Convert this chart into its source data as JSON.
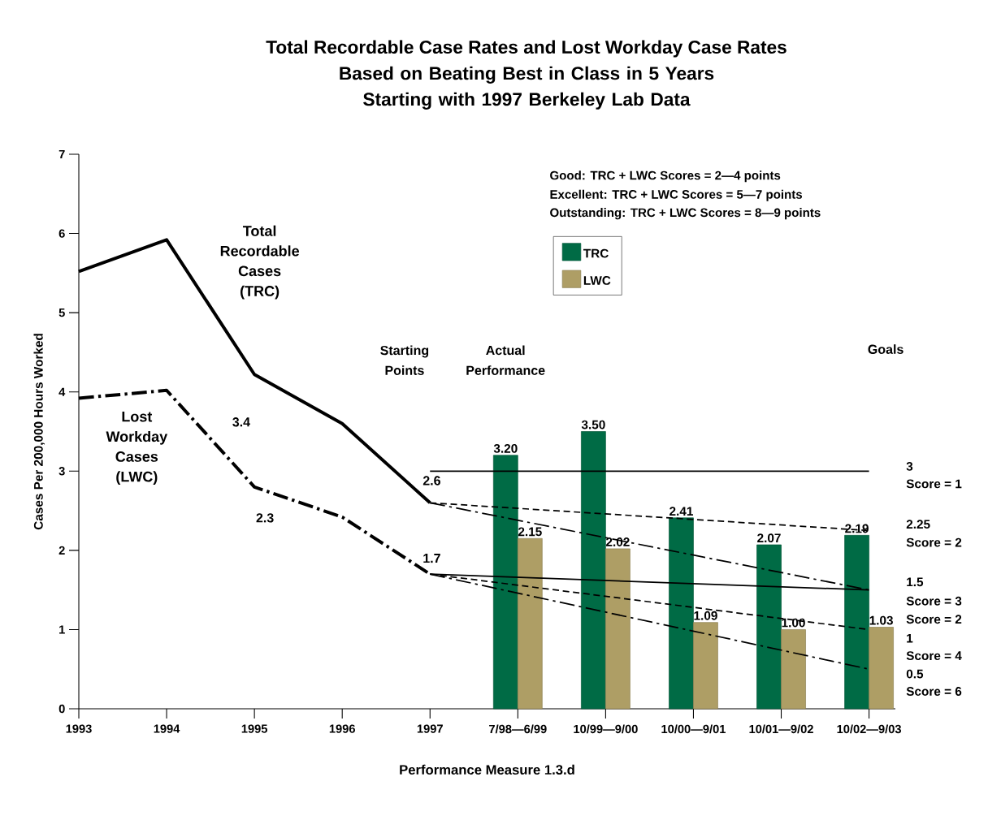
{
  "chart_data": {
    "type": "bar",
    "title": "Total Recordable Case Rates and Lost Workday Case Rates",
    "subtitle": "Based on Beating Best in Class in 5 Years Starting with 1997 Berkeley Lab Data",
    "xlabel": "Performance Measure 1.3.d",
    "ylabel": "Cases Per 200,000 Hours Worked",
    "categories": [
      "1993",
      "1994",
      "1995",
      "1996",
      "1997",
      "7/98—6/99",
      "10/99—9/00",
      "10/00—9/01",
      "10/01—9/02",
      "10/02—9/03"
    ],
    "series": [
      {
        "type": "line",
        "name": "Total Recordable Cases (TRC)",
        "color": "#000000",
        "line_style": "solid",
        "values": [
          5.52,
          5.92,
          4.22,
          3.6,
          2.6,
          null,
          null,
          null,
          null,
          null
        ]
      },
      {
        "type": "line",
        "name": "Lost Workday Cases (LWC)",
        "color": "#000000",
        "line_style": "dashdot",
        "values": [
          3.92,
          4.02,
          2.8,
          2.42,
          1.7,
          null,
          null,
          null,
          null,
          null
        ]
      },
      {
        "name": "TRC",
        "color": "#006b45",
        "values": [
          null,
          null,
          null,
          null,
          null,
          3.2,
          3.5,
          2.41,
          2.07,
          2.19
        ],
        "value_labels": [
          null,
          null,
          null,
          null,
          null,
          "3.20",
          "3.50",
          "2.41",
          "2.07",
          "2.19"
        ]
      },
      {
        "name": "LWC",
        "color": "#ae9e65",
        "values": [
          null,
          null,
          null,
          null,
          null,
          2.15,
          2.02,
          1.09,
          1.0,
          1.03
        ],
        "value_labels": [
          null,
          null,
          null,
          null,
          null,
          "2.15",
          "2.02",
          "1.09",
          "1.00",
          "1.03"
        ]
      },
      {
        "type": "line",
        "color": "#000000",
        "line_style": "solid",
        "values": [
          null,
          null,
          null,
          null,
          3,
          null,
          null,
          null,
          null,
          3
        ]
      },
      {
        "type": "line",
        "color": "#000000",
        "line_style": "dashed",
        "values": [
          null,
          null,
          null,
          null,
          2.6,
          null,
          null,
          null,
          null,
          2.25
        ]
      },
      {
        "type": "line",
        "color": "#000000",
        "line_style": "dashdot",
        "values": [
          null,
          null,
          null,
          null,
          2.6,
          null,
          null,
          null,
          null,
          1.5
        ]
      },
      {
        "type": "line",
        "color": "#000000",
        "line_style": "solid",
        "values": [
          null,
          null,
          null,
          null,
          1.7,
          null,
          null,
          null,
          null,
          1.5
        ]
      },
      {
        "type": "line",
        "color": "#000000",
        "line_style": "dashed",
        "values": [
          null,
          null,
          null,
          null,
          1.7,
          null,
          null,
          null,
          null,
          1.0
        ]
      },
      {
        "type": "line",
        "color": "#000000",
        "line_style": "dashdot",
        "values": [
          null,
          null,
          null,
          null,
          1.7,
          null,
          null,
          null,
          null,
          0.5
        ]
      }
    ],
    "ylim": [
      0,
      7
    ],
    "yticks": [
      0,
      1,
      2,
      3,
      4,
      5,
      6,
      7
    ],
    "grid": false,
    "legend": "top",
    "annotations": [
      "Starting Points",
      "Actual Performance",
      "Goals",
      "Good: TRC + LWC Scores = 2—4 points",
      "Excellent: TRC + LWC Scores = 5—7 points",
      "Outstanding: TRC + LWC Scores = 8—9 points",
      "3.4",
      "2.3",
      "2.6",
      "1.7",
      "3",
      "Score = 1",
      "2.25",
      "Score = 2",
      "1.5",
      "Score = 3",
      "Score = 2",
      "1",
      "Score = 4",
      "0.5",
      "Score = 6"
    ]
  }
}
